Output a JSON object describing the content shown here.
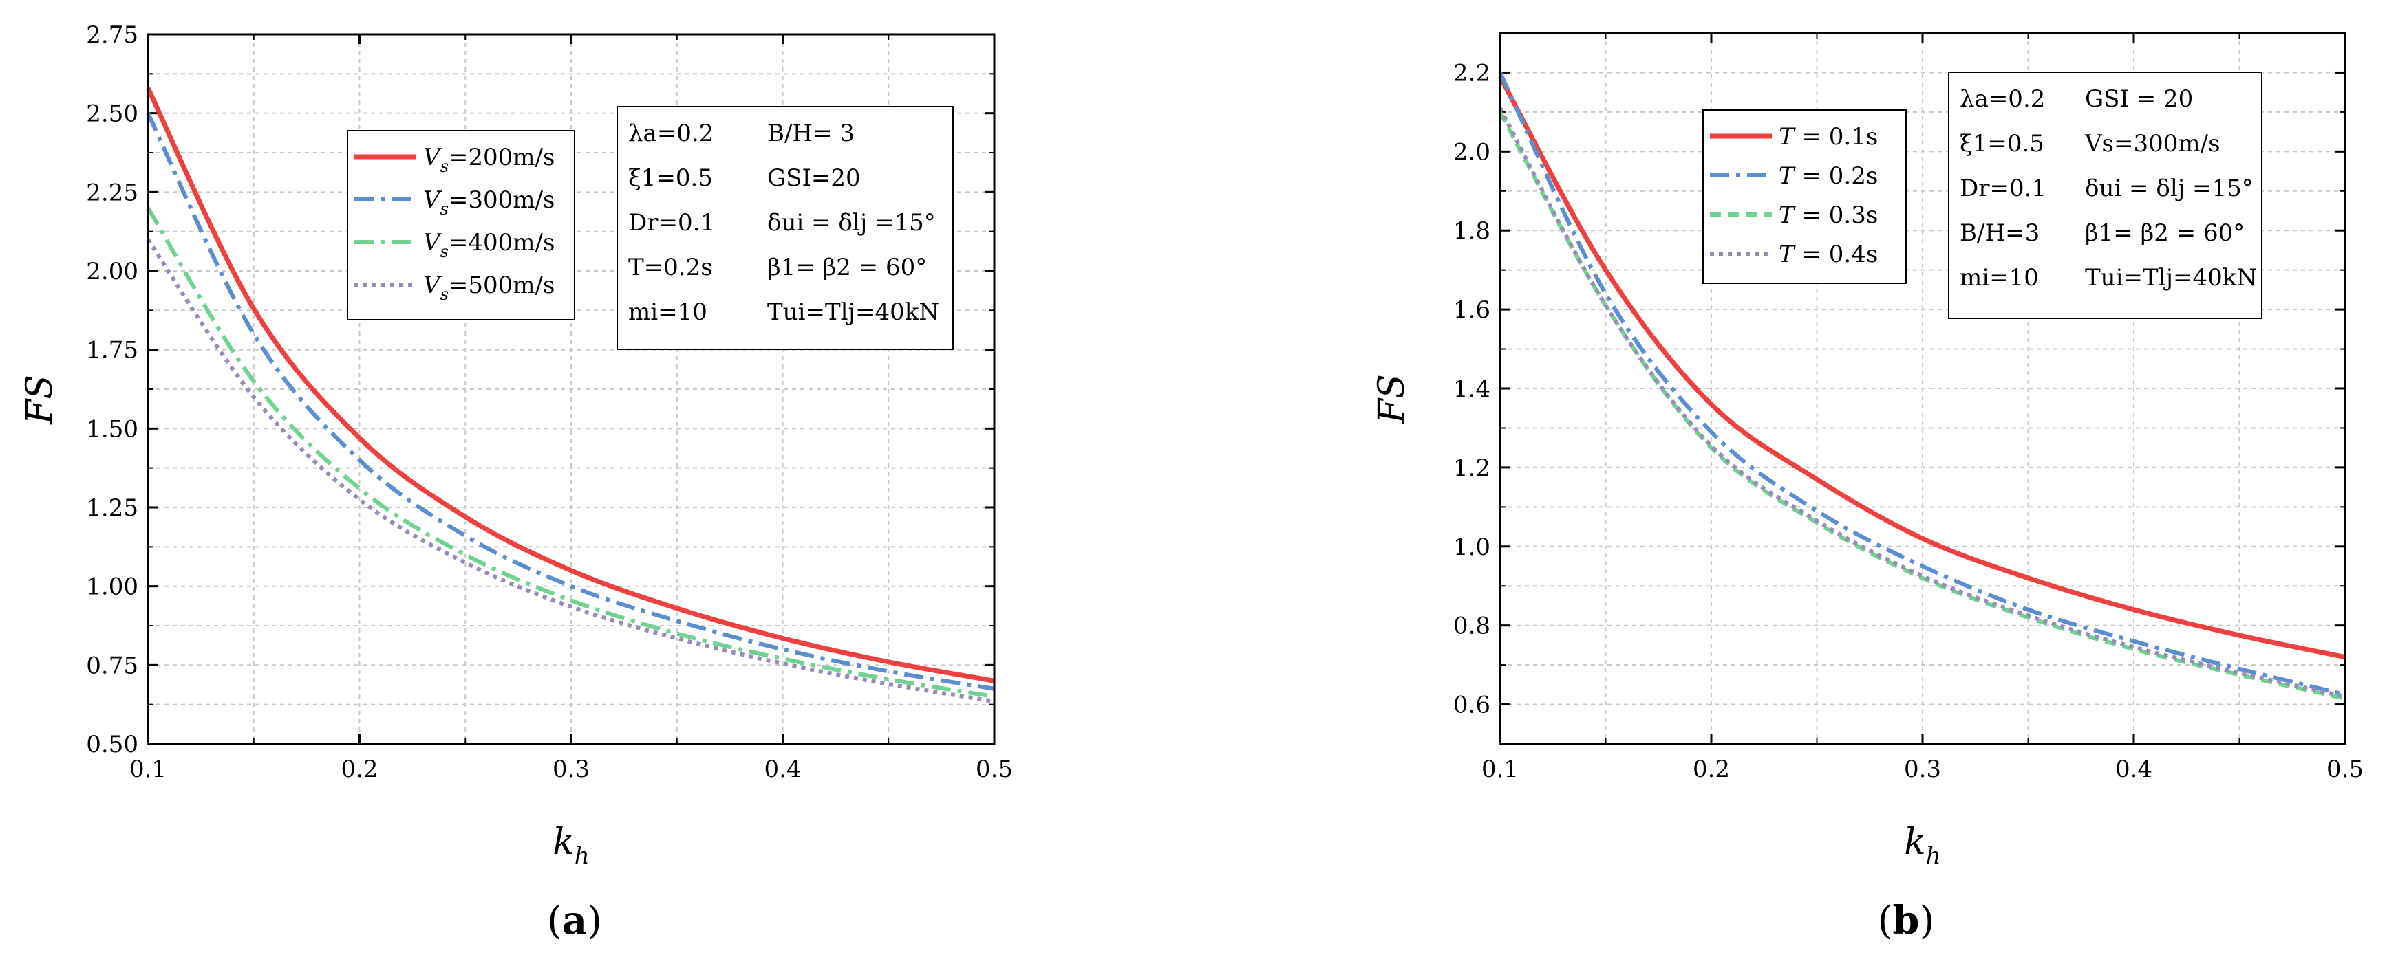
{
  "chart_data": [
    {
      "type": "line",
      "panel": "(a)",
      "panel_letter": "a",
      "xlabel": "k_h",
      "ylabel": "FS",
      "xlim": [
        0.1,
        0.5
      ],
      "ylim": [
        0.5,
        2.75
      ],
      "xticks": [
        "0.1",
        "0.2",
        "0.3",
        "0.4",
        "0.5"
      ],
      "yticks": [
        "0.50",
        "0.75",
        "1.00",
        "1.25",
        "1.50",
        "1.75",
        "2.00",
        "2.25",
        "2.50",
        "2.75"
      ],
      "x": [
        0.1,
        0.15,
        0.2,
        0.25,
        0.3,
        0.35,
        0.4,
        0.45,
        0.5
      ],
      "series": [
        {
          "name": "Vs=200m/s",
          "legend_var": "V",
          "legend_sub": "s",
          "legend_val": "=200m/s",
          "color": "#ee4040",
          "dash": "solid",
          "values": [
            2.58,
            1.88,
            1.47,
            1.22,
            1.05,
            0.93,
            0.835,
            0.76,
            0.7
          ]
        },
        {
          "name": "Vs=300m/s",
          "legend_var": "V",
          "legend_sub": "s",
          "legend_val": "=300m/s",
          "color": "#5b8ed0",
          "dash": "dashdot",
          "values": [
            2.5,
            1.8,
            1.4,
            1.16,
            1.0,
            0.89,
            0.8,
            0.73,
            0.675
          ]
        },
        {
          "name": "Vs=400m/s",
          "legend_var": "V",
          "legend_sub": "s",
          "legend_val": "=400m/s",
          "color": "#70d290",
          "dash": "dashdot",
          "values": [
            2.2,
            1.65,
            1.31,
            1.1,
            0.955,
            0.85,
            0.77,
            0.705,
            0.65
          ]
        },
        {
          "name": "Vs=500m/s",
          "legend_var": "V",
          "legend_sub": "s",
          "legend_val": "=500m/s",
          "color": "#9a8ab8",
          "dash": "dot",
          "values": [
            2.1,
            1.6,
            1.275,
            1.075,
            0.935,
            0.835,
            0.755,
            0.69,
            0.635
          ]
        }
      ],
      "info_rows": [
        [
          "λa=0.2",
          "B/H= 3"
        ],
        [
          "ξ1=0.5",
          "GSI=20"
        ],
        [
          "Dr=0.1",
          "δui = δlj =15°"
        ],
        [
          "T=0.2s",
          "β1= β2 = 60°"
        ],
        [
          "mi=10",
          "Tui=Tlj=40kN"
        ]
      ]
    },
    {
      "type": "line",
      "panel": "(b)",
      "panel_letter": "b",
      "xlabel": "k_h",
      "ylabel": "FS",
      "xlim": [
        0.1,
        0.5
      ],
      "ylim": [
        0.5,
        2.3
      ],
      "xticks": [
        "0.1",
        "0.2",
        "0.3",
        "0.4",
        "0.5"
      ],
      "yticks": [
        "0.6",
        "0.8",
        "1.0",
        "1.2",
        "1.4",
        "1.6",
        "1.8",
        "2.0",
        "2.2"
      ],
      "x": [
        0.1,
        0.15,
        0.2,
        0.25,
        0.3,
        0.35,
        0.4,
        0.45,
        0.5
      ],
      "series": [
        {
          "name": "T = 0.1s",
          "legend_var": "T",
          "legend_sub": "",
          "legend_val": " = 0.1s",
          "color": "#ee4040",
          "dash": "solid",
          "values": [
            2.19,
            1.7,
            1.36,
            1.17,
            1.02,
            0.92,
            0.84,
            0.775,
            0.72
          ]
        },
        {
          "name": "T = 0.2s",
          "legend_var": "T",
          "legend_sub": "",
          "legend_val": " = 0.2s",
          "color": "#5b8ed0",
          "dash": "dashdot",
          "values": [
            2.2,
            1.64,
            1.29,
            1.09,
            0.95,
            0.84,
            0.76,
            0.69,
            0.625
          ]
        },
        {
          "name": "T = 0.3s",
          "legend_var": "T",
          "legend_sub": "",
          "legend_val": " = 0.3s",
          "color": "#70d290",
          "dash": "dash",
          "values": [
            2.1,
            1.61,
            1.25,
            1.06,
            0.92,
            0.82,
            0.74,
            0.675,
            0.615
          ]
        },
        {
          "name": "T = 0.4s",
          "legend_var": "T",
          "legend_sub": "",
          "legend_val": " = 0.4s",
          "color": "#9a8ab8",
          "dash": "dot",
          "values": [
            2.11,
            1.61,
            1.255,
            1.065,
            0.925,
            0.825,
            0.745,
            0.68,
            0.62
          ]
        }
      ],
      "info_rows": [
        [
          "λa=0.2",
          "GSI = 20"
        ],
        [
          "ξ1=0.5",
          "Vs=300m/s"
        ],
        [
          "Dr=0.1",
          "δui = δlj =15°"
        ],
        [
          "B/H=3",
          "β1= β2 = 60°"
        ],
        [
          "mi=10",
          "Tui=Tlj=40kN"
        ]
      ]
    }
  ]
}
